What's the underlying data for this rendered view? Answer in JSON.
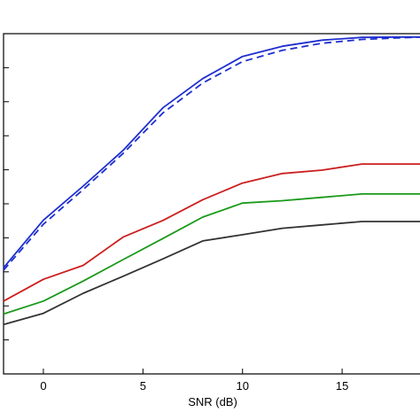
{
  "chart_data": {
    "type": "line",
    "xlabel": "SNR (dB)",
    "ylabel": "",
    "title": "",
    "xlim": [
      -2,
      19
    ],
    "ylim": [
      0,
      1
    ],
    "x_ticks": [
      0,
      5,
      10,
      15
    ],
    "y_tick_count": 11,
    "grid": false,
    "series": [
      {
        "color": "#1f2fd0",
        "style": "solid",
        "x": [
          -2,
          0,
          2,
          4,
          6,
          8,
          10,
          12,
          14,
          16,
          18,
          19
        ],
        "y": [
          0.312,
          0.452,
          0.552,
          0.657,
          0.782,
          0.868,
          0.933,
          0.963,
          0.981,
          0.989,
          0.99,
          0.99
        ]
      },
      {
        "color": "#1f2fd0",
        "style": "dashed",
        "x": [
          -2,
          0,
          2,
          4,
          6,
          8,
          10,
          12,
          14,
          16,
          18,
          19
        ],
        "y": [
          0.305,
          0.44,
          0.542,
          0.648,
          0.767,
          0.855,
          0.918,
          0.951,
          0.972,
          0.983,
          0.988,
          0.99
        ]
      },
      {
        "color": "#cc1f1f",
        "style": "solid",
        "x": [
          -2,
          0,
          2,
          4,
          6,
          8,
          10,
          12,
          14,
          16,
          18,
          19
        ],
        "y": [
          0.214,
          0.278,
          0.319,
          0.402,
          0.451,
          0.512,
          0.561,
          0.589,
          0.599,
          0.617,
          0.617,
          0.617
        ]
      },
      {
        "color": "#1a9a1a",
        "style": "solid",
        "x": [
          -2,
          0,
          2,
          4,
          6,
          8,
          10,
          12,
          14,
          16,
          18,
          19
        ],
        "y": [
          0.176,
          0.214,
          0.273,
          0.336,
          0.398,
          0.461,
          0.502,
          0.509,
          0.519,
          0.529,
          0.529,
          0.529
        ]
      },
      {
        "color": "#333333",
        "style": "solid",
        "x": [
          -2,
          0,
          2,
          4,
          6,
          8,
          10,
          12,
          14,
          16,
          18,
          19
        ],
        "y": [
          0.145,
          0.178,
          0.237,
          0.287,
          0.338,
          0.391,
          0.409,
          0.428,
          0.438,
          0.448,
          0.448,
          0.448
        ]
      }
    ]
  }
}
